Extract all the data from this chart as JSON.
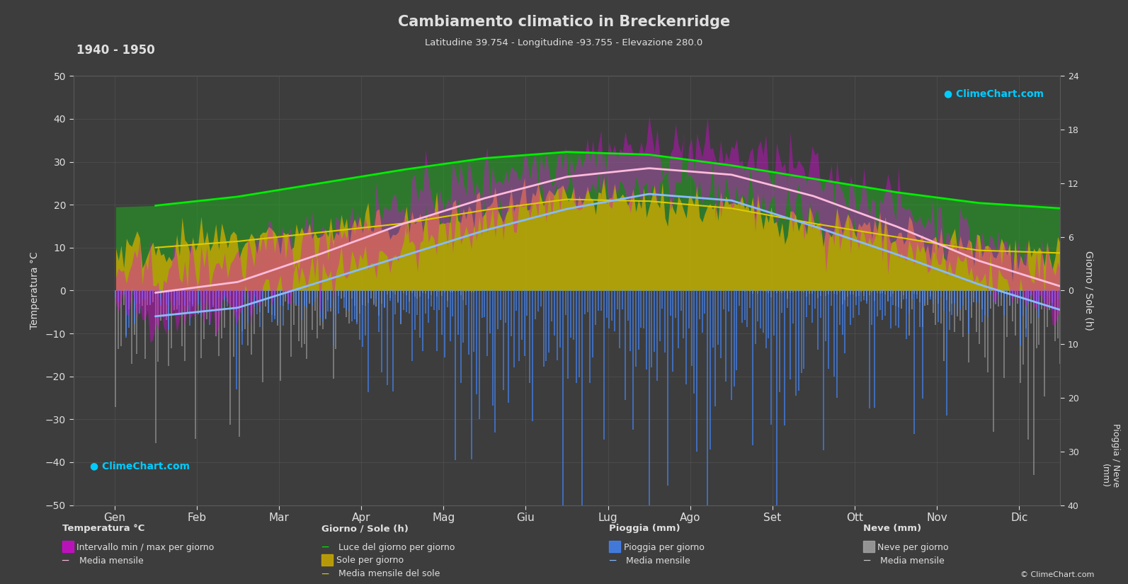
{
  "title": "Cambiamento climatico in Breckenridge",
  "subtitle": "Latitudine 39.754 - Longitudine -93.755 - Elevazione 280.0",
  "period": "1940 - 1950",
  "bg_color": "#3d3d3d",
  "grid_color": "#595959",
  "text_color": "#e0e0e0",
  "months": [
    "Gen",
    "Feb",
    "Mar",
    "Apr",
    "Mag",
    "Giu",
    "Lug",
    "Ago",
    "Set",
    "Ott",
    "Nov",
    "Dic"
  ],
  "temp_min_mean": [
    -5.5,
    -3.0,
    3.5,
    10.0,
    16.0,
    21.5,
    24.0,
    22.5,
    16.5,
    10.0,
    2.5,
    -3.5
  ],
  "temp_max_mean": [
    4.0,
    7.0,
    13.5,
    20.5,
    26.5,
    31.5,
    33.5,
    32.0,
    27.0,
    20.0,
    11.5,
    5.0
  ],
  "temp_mean_warm": [
    -0.5,
    2.0,
    8.5,
    15.5,
    21.5,
    26.5,
    28.5,
    27.0,
    22.0,
    15.0,
    7.0,
    1.0
  ],
  "temp_mean_cold": [
    -6.0,
    -4.0,
    2.0,
    8.0,
    14.0,
    19.0,
    22.5,
    21.0,
    15.0,
    8.5,
    1.5,
    -4.5
  ],
  "daylight_hours": [
    9.5,
    10.5,
    12.0,
    13.5,
    14.8,
    15.5,
    15.2,
    14.0,
    12.5,
    11.0,
    9.8,
    9.2
  ],
  "sunshine_hours": [
    4.8,
    5.5,
    6.5,
    7.5,
    9.0,
    10.2,
    10.0,
    9.2,
    7.5,
    6.0,
    4.5,
    4.2
  ],
  "rain_mm": [
    1.5,
    2.0,
    3.5,
    5.5,
    8.5,
    9.5,
    9.0,
    8.5,
    6.5,
    4.5,
    2.5,
    1.8
  ],
  "snow_mm": [
    7.0,
    5.5,
    3.5,
    1.0,
    0.0,
    0.0,
    0.0,
    0.0,
    0.5,
    1.0,
    4.5,
    7.5
  ],
  "ylim_temp": [
    -50,
    50
  ],
  "sun_max": 24,
  "precip_max": 40,
  "noise_seed": 42,
  "temp_noise": 3.5,
  "sun_noise": 1.2,
  "precip_noise_scale": 1.2,
  "days_per_month": [
    31,
    28,
    31,
    30,
    31,
    30,
    31,
    31,
    30,
    31,
    30,
    31
  ]
}
